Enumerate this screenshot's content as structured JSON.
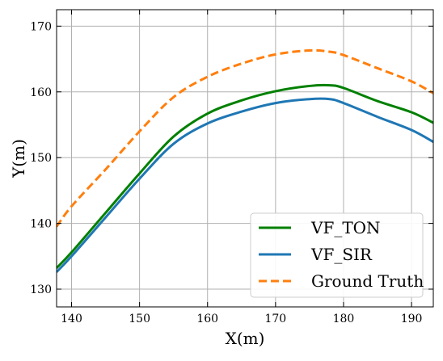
{
  "chart_data": {
    "type": "line",
    "xlabel": "X(m)",
    "ylabel": "Y(m)",
    "xlim": [
      137.8,
      193.2
    ],
    "ylim": [
      127.3,
      172.5
    ],
    "xticks": [
      140,
      150,
      160,
      170,
      180,
      190
    ],
    "yticks": [
      130,
      140,
      150,
      160,
      170
    ],
    "xtick_labels": [
      "140",
      "150",
      "160",
      "170",
      "180",
      "190"
    ],
    "ytick_labels": [
      "130",
      "140",
      "150",
      "160",
      "170"
    ],
    "grid": true,
    "legend_position": "lower-right",
    "series": [
      {
        "name": "VF_TON",
        "color": "#008000",
        "dash": "solid",
        "x": [
          137.8,
          140,
          145,
          150,
          155,
          160,
          165,
          170,
          175,
          178,
          180,
          185,
          190,
          193.2
        ],
        "y": [
          133.2,
          135.6,
          141.6,
          147.6,
          153.2,
          156.7,
          158.7,
          160.1,
          160.9,
          161.0,
          160.6,
          158.6,
          156.9,
          155.3
        ]
      },
      {
        "name": "VF_SIR",
        "color": "#1f77b4",
        "dash": "solid",
        "x": [
          137.8,
          140,
          145,
          150,
          155,
          160,
          165,
          170,
          175,
          178,
          180,
          185,
          190,
          193.2
        ],
        "y": [
          132.6,
          135.0,
          140.9,
          146.8,
          152.1,
          155.2,
          157.0,
          158.3,
          158.9,
          158.9,
          158.3,
          156.2,
          154.2,
          152.4
        ]
      },
      {
        "name": "Ground Truth",
        "color": "#ff7f0e",
        "dash": "dashed",
        "x": [
          137.8,
          140,
          145,
          150,
          155,
          160,
          165,
          170,
          175,
          178,
          180,
          185,
          190,
          193.2
        ],
        "y": [
          139.5,
          142.6,
          148.2,
          154.0,
          159.2,
          162.3,
          164.3,
          165.7,
          166.3,
          166.1,
          165.6,
          163.6,
          161.6,
          159.8
        ]
      }
    ]
  }
}
